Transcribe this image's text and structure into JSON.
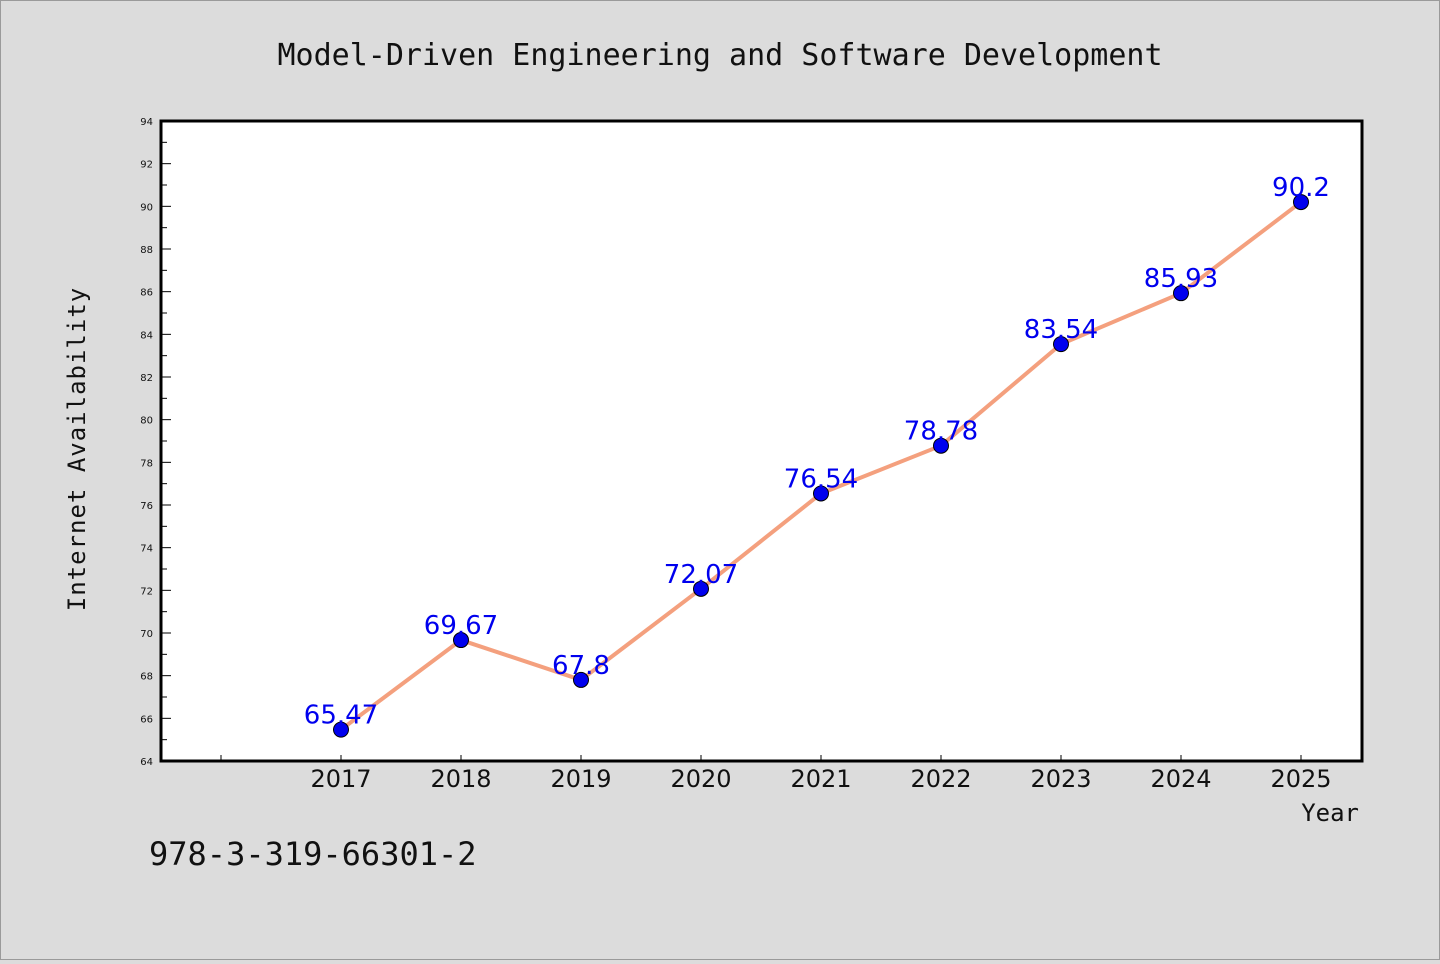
{
  "chart_data": {
    "type": "line",
    "title": "Model-Driven Engineering and Software Development",
    "xlabel": "Year",
    "ylabel": "Internet Availability",
    "categories": [
      "2017",
      "2018",
      "2019",
      "2020",
      "2021",
      "2022",
      "2023",
      "2024",
      "2025"
    ],
    "values": [
      65.47,
      69.67,
      67.8,
      72.07,
      76.54,
      78.78,
      83.54,
      85.93,
      90.2
    ],
    "data_labels": [
      "65.47",
      "69.67",
      "67.8",
      "72.07",
      "76.54",
      "78.78",
      "83.54",
      "85.93",
      "90.2"
    ],
    "ylim": [
      64,
      94
    ],
    "yticks": [
      "64",
      "66",
      "68",
      "70",
      "72",
      "74",
      "76",
      "78",
      "80",
      "82",
      "84",
      "86",
      "88",
      "90",
      "92",
      "94"
    ],
    "grid": false,
    "legend": "none",
    "line_color": "#f4a07e",
    "marker_color": "#0000ee"
  },
  "footnote": "978-3-319-66301-2"
}
